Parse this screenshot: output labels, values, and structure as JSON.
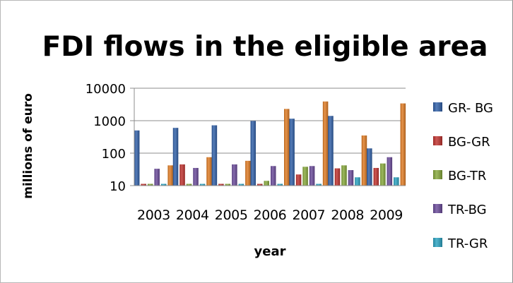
{
  "chart_data": {
    "type": "bar",
    "title": "FDI flows in the eligible area",
    "xlabel": "year",
    "ylabel": "millions of euro",
    "yscale": "log",
    "ylim": [
      10,
      10000
    ],
    "yticks": [
      "10",
      "100",
      "1000",
      "10000"
    ],
    "categories": [
      "2003",
      "2004",
      "2005",
      "2006",
      "2007",
      "2008",
      "2009"
    ],
    "series": [
      {
        "name": "GR- BG",
        "color": "#2f5fa8",
        "values": [
          500,
          600,
          720,
          980,
          1150,
          1400,
          140
        ]
      },
      {
        "name": "BG-GR",
        "color": "#c0312d",
        "values": [
          10,
          45,
          10,
          10,
          22,
          34,
          35
        ]
      },
      {
        "name": "BG-TR",
        "color": "#86a83a",
        "values": [
          10,
          10,
          10,
          14,
          38,
          42,
          48
        ]
      },
      {
        "name": "TR-BG",
        "color": "#6a4a9a",
        "values": [
          33,
          35,
          45,
          40,
          40,
          30,
          75
        ]
      },
      {
        "name": "TR-GR",
        "color": "#2aa3c2",
        "values": [
          10,
          10,
          10,
          10,
          10,
          18,
          18
        ]
      },
      {
        "name": "",
        "color": "#e07b22",
        "values": [
          42,
          75,
          58,
          2300,
          3900,
          350,
          3400
        ]
      }
    ],
    "legend_position": "right",
    "grid": true
  }
}
